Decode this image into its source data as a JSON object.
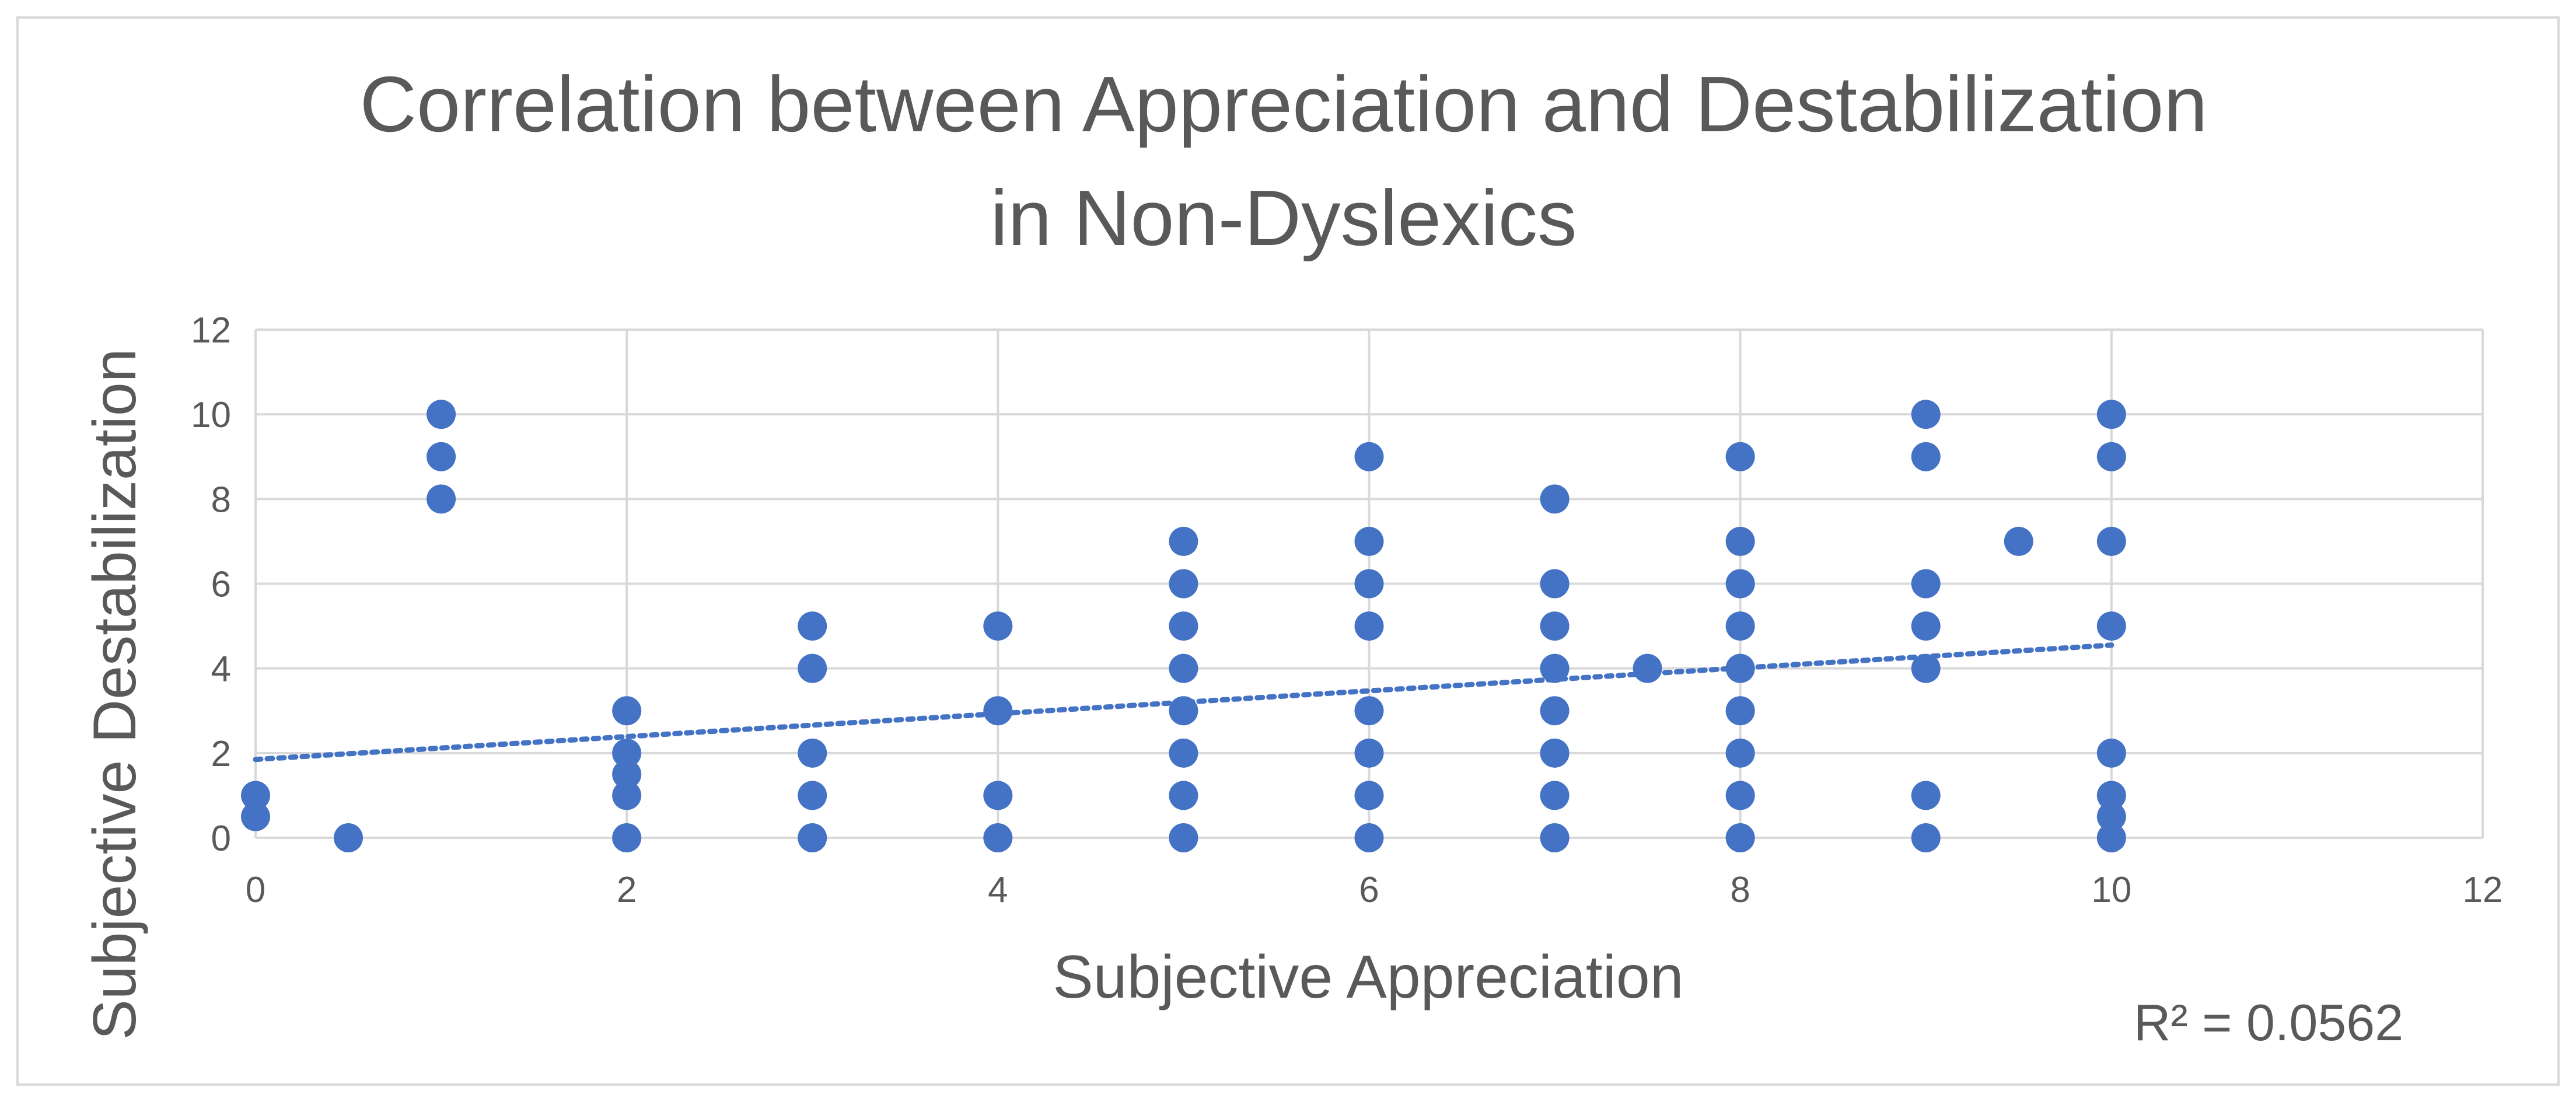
{
  "chart_data": {
    "type": "scatter",
    "title": "Correlation between Appreciation and Destabilization",
    "subtitle": "in Non-Dyslexics",
    "xlabel": "Subjective Appreciation",
    "ylabel": "Subjective Destabilization",
    "xlim": [
      0,
      12
    ],
    "ylim": [
      0,
      12
    ],
    "xticks": [
      0,
      2,
      4,
      6,
      8,
      10,
      12
    ],
    "yticks": [
      0,
      2,
      4,
      6,
      8,
      10,
      12
    ],
    "grid": true,
    "legend": "none",
    "marker_color": "#4472C4",
    "trendline": {
      "type": "linear",
      "style": "dotted",
      "color": "#4472C4",
      "intercept": 1.85,
      "slope": 0.27,
      "x_range": [
        0,
        10
      ],
      "r_squared_label": "R² = 0.0562"
    },
    "series": [
      {
        "name": "Non-Dyslexics",
        "points": [
          [
            0,
            1
          ],
          [
            0,
            0.5
          ],
          [
            0.5,
            0
          ],
          [
            1,
            10
          ],
          [
            1,
            9
          ],
          [
            1,
            8
          ],
          [
            2,
            3
          ],
          [
            2,
            2
          ],
          [
            2,
            1.5
          ],
          [
            2,
            1
          ],
          [
            2,
            0
          ],
          [
            3,
            5
          ],
          [
            3,
            4
          ],
          [
            3,
            2
          ],
          [
            3,
            1
          ],
          [
            3,
            0
          ],
          [
            4,
            5
          ],
          [
            4,
            3
          ],
          [
            4,
            1
          ],
          [
            4,
            0
          ],
          [
            5,
            7
          ],
          [
            5,
            6
          ],
          [
            5,
            5
          ],
          [
            5,
            4
          ],
          [
            5,
            3
          ],
          [
            5,
            2
          ],
          [
            5,
            1
          ],
          [
            5,
            0
          ],
          [
            6,
            9
          ],
          [
            6,
            7
          ],
          [
            6,
            6
          ],
          [
            6,
            5
          ],
          [
            6,
            3
          ],
          [
            6,
            2
          ],
          [
            6,
            1
          ],
          [
            6,
            0
          ],
          [
            7,
            8
          ],
          [
            7,
            6
          ],
          [
            7,
            5
          ],
          [
            7,
            4
          ],
          [
            7,
            3
          ],
          [
            7,
            2
          ],
          [
            7,
            1
          ],
          [
            7,
            0
          ],
          [
            7.5,
            4
          ],
          [
            8,
            9
          ],
          [
            8,
            7
          ],
          [
            8,
            6
          ],
          [
            8,
            5
          ],
          [
            8,
            4
          ],
          [
            8,
            3
          ],
          [
            8,
            2
          ],
          [
            8,
            1
          ],
          [
            8,
            0
          ],
          [
            9,
            10
          ],
          [
            9,
            9
          ],
          [
            9,
            6
          ],
          [
            9,
            5
          ],
          [
            9,
            4
          ],
          [
            9,
            1
          ],
          [
            9,
            0
          ],
          [
            9.5,
            7
          ],
          [
            10,
            10
          ],
          [
            10,
            9
          ],
          [
            10,
            7
          ],
          [
            10,
            5
          ],
          [
            10,
            2
          ],
          [
            10,
            1
          ],
          [
            10,
            0.5
          ],
          [
            10,
            0
          ]
        ]
      }
    ]
  }
}
